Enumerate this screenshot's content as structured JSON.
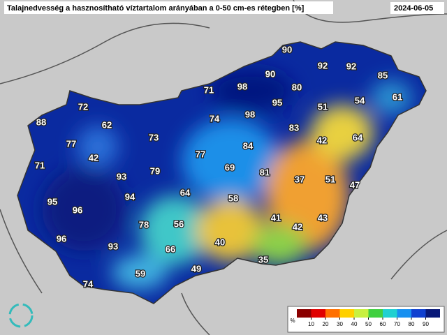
{
  "header": {
    "title": "Talajnedvesség a hasznosítható víztartalom arányában a 0-50 cm-es rétegben [%]",
    "date": "2024-06-05"
  },
  "labels": [
    90,
    92,
    92,
    85,
    71,
    98,
    90,
    80,
    61,
    72,
    95,
    51,
    54,
    62,
    74,
    98,
    83,
    88,
    77,
    73,
    84,
    42,
    64,
    42,
    77,
    71,
    93,
    79,
    69,
    81,
    37,
    51,
    47,
    94,
    64,
    58,
    95,
    96,
    41,
    42,
    43,
    78,
    56,
    96,
    93,
    66,
    40,
    35,
    49,
    59,
    74
  ],
  "legend": {
    "unit": "%",
    "ticks": [
      10,
      20,
      30,
      40,
      50,
      60,
      70,
      80,
      90
    ]
  }
}
